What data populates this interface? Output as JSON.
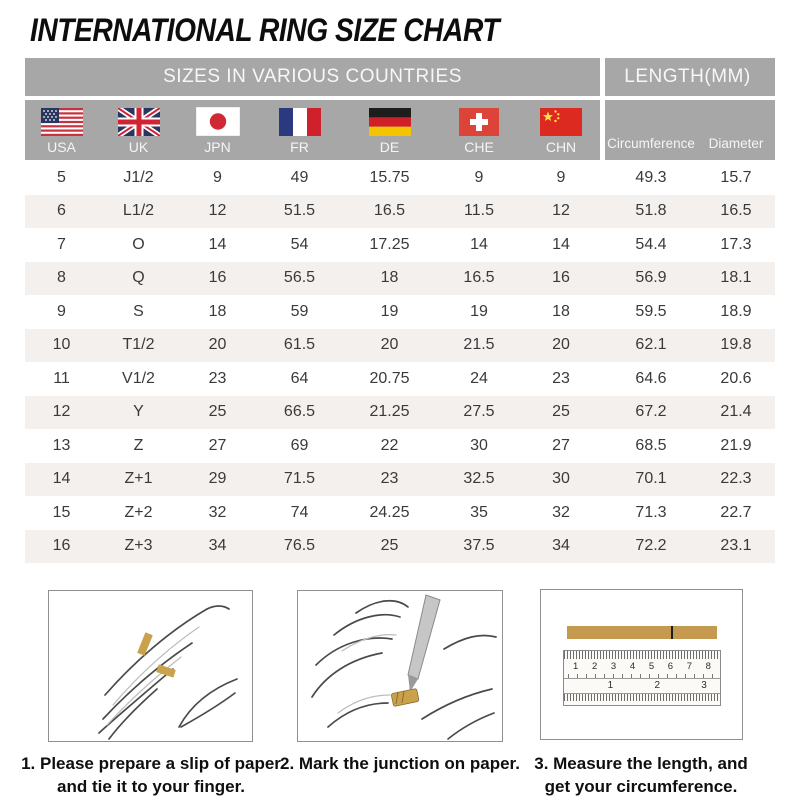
{
  "title": "INTERNATIONAL RING SIZE CHART",
  "table": {
    "group_headers": [
      "SIZES IN VARIOUS COUNTRIES",
      "LENGTH(MM)"
    ],
    "country_columns": [
      {
        "code": "USA",
        "flag": "usa-flag-icon"
      },
      {
        "code": "UK",
        "flag": "uk-flag-icon"
      },
      {
        "code": "JPN",
        "flag": "japan-flag-icon"
      },
      {
        "code": "FR",
        "flag": "france-flag-icon"
      },
      {
        "code": "DE",
        "flag": "germany-flag-icon"
      },
      {
        "code": "CHE",
        "flag": "switzerland-flag-icon"
      },
      {
        "code": "CHN",
        "flag": "china-flag-icon"
      }
    ],
    "length_columns": [
      "Circumference",
      "Diameter"
    ]
  },
  "chart_data": {
    "type": "table",
    "title": "INTERNATIONAL RING SIZE CHART",
    "columns": [
      "USA",
      "UK",
      "JPN",
      "FR",
      "DE",
      "CHE",
      "CHN",
      "Circumference",
      "Diameter"
    ],
    "rows": [
      [
        "5",
        "J1/2",
        "9",
        "49",
        "15.75",
        "9",
        "9",
        "49.3",
        "15.7"
      ],
      [
        "6",
        "L1/2",
        "12",
        "51.5",
        "16.5",
        "11.5",
        "12",
        "51.8",
        "16.5"
      ],
      [
        "7",
        "O",
        "14",
        "54",
        "17.25",
        "14",
        "14",
        "54.4",
        "17.3"
      ],
      [
        "8",
        "Q",
        "16",
        "56.5",
        "18",
        "16.5",
        "16",
        "56.9",
        "18.1"
      ],
      [
        "9",
        "S",
        "18",
        "59",
        "19",
        "19",
        "18",
        "59.5",
        "18.9"
      ],
      [
        "10",
        "T1/2",
        "20",
        "61.5",
        "20",
        "21.5",
        "20",
        "62.1",
        "19.8"
      ],
      [
        "11",
        "V1/2",
        "23",
        "64",
        "20.75",
        "24",
        "23",
        "64.6",
        "20.6"
      ],
      [
        "12",
        "Y",
        "25",
        "66.5",
        "21.25",
        "27.5",
        "25",
        "67.2",
        "21.4"
      ],
      [
        "13",
        "Z",
        "27",
        "69",
        "22",
        "30",
        "27",
        "68.5",
        "21.9"
      ],
      [
        "14",
        "Z+1",
        "29",
        "71.5",
        "23",
        "32.5",
        "30",
        "70.1",
        "22.3"
      ],
      [
        "15",
        "Z+2",
        "32",
        "74",
        "24.25",
        "35",
        "32",
        "71.3",
        "22.7"
      ],
      [
        "16",
        "Z+3",
        "34",
        "76.5",
        "25",
        "37.5",
        "34",
        "72.2",
        "23.1"
      ]
    ]
  },
  "instructions": [
    {
      "illustration": "hand-with-paper-strip",
      "caption_lines": [
        "1. Please prepare a slip of paper",
        "and tie it to your finger."
      ]
    },
    {
      "illustration": "hand-marking-with-pen",
      "caption_lines": [
        "2. Mark the junction on paper.",
        ""
      ]
    },
    {
      "illustration": "ruler-measuring-strip",
      "caption_lines": [
        "3. Measure the length, and",
        "get your circumference."
      ],
      "ruler_cm_numbers": [
        "1",
        "2",
        "3",
        "4",
        "5",
        "6",
        "7",
        "8"
      ],
      "ruler_inch_numbers": [
        "1",
        "2",
        "3"
      ]
    }
  ],
  "colors": {
    "header_gray": "#a7a7a7",
    "row_stripe": "#f4f0ed",
    "paper_gold": "#c49a4e",
    "text_dark": "#3a3a3a"
  }
}
